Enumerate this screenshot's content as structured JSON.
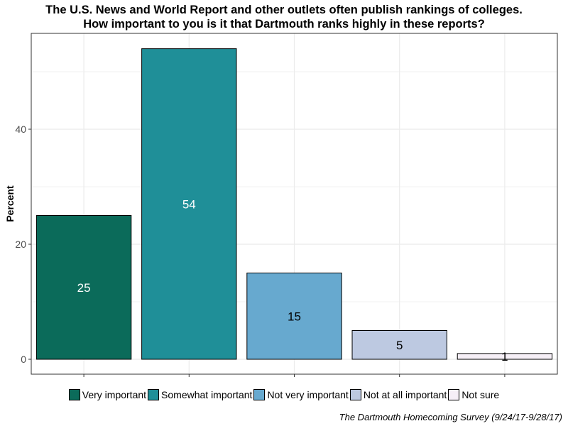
{
  "title_lines": [
    "The U.S. News and World Report and other outlets often publish rankings of colleges.",
    "How important to you is it that Dartmouth ranks highly in these reports?"
  ],
  "caption": "The Dartmouth Homecoming Survey (9/24/17-9/28/17)",
  "chart_data": {
    "type": "bar",
    "title": "The U.S. News and World Report and other outlets often publish rankings of colleges. How important to you is it that Dartmouth ranks highly in these reports?",
    "xlabel": "",
    "ylabel": "Percent",
    "categories": [
      "Very important",
      "Somewhat important",
      "Not very important",
      "Not at all important",
      "Not sure"
    ],
    "values": [
      25,
      54,
      15,
      5,
      1
    ],
    "data_labels": [
      "25",
      "54",
      "15",
      "5",
      "1"
    ],
    "colors": [
      "#0b6b5a",
      "#1f8f98",
      "#67a9cf",
      "#bdc9e1",
      "#f6eff7"
    ],
    "label_colors": [
      "#ffffff",
      "#ffffff",
      "#000000",
      "#000000",
      "#000000"
    ],
    "ylim": [
      0,
      57
    ],
    "yticks": [
      0,
      20,
      40
    ],
    "ytick_labels": [
      "0",
      "20",
      "40"
    ],
    "grid": true,
    "legend_position": "bottom"
  }
}
